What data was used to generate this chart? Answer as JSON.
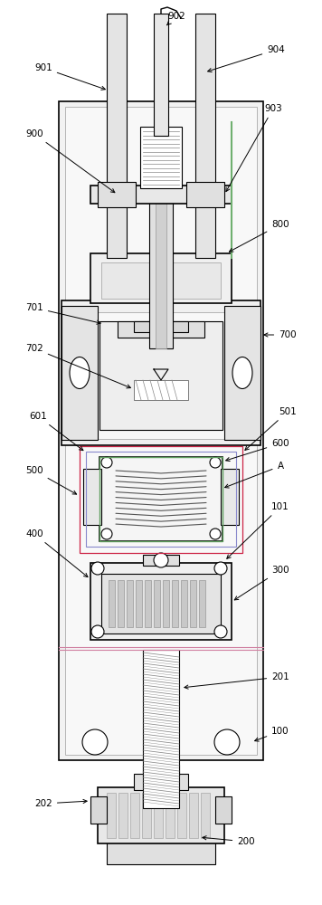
{
  "bg_color": "#ffffff",
  "lc": "#000000",
  "gray1": "#e8e8e8",
  "gray2": "#d0d0d0",
  "gray3": "#c0c0c0",
  "gray4": "#b0b0b0",
  "pink": "#d4a0a0",
  "green": "#80b880",
  "blue_dashed": "#8080c0",
  "label_fs": 7.5
}
